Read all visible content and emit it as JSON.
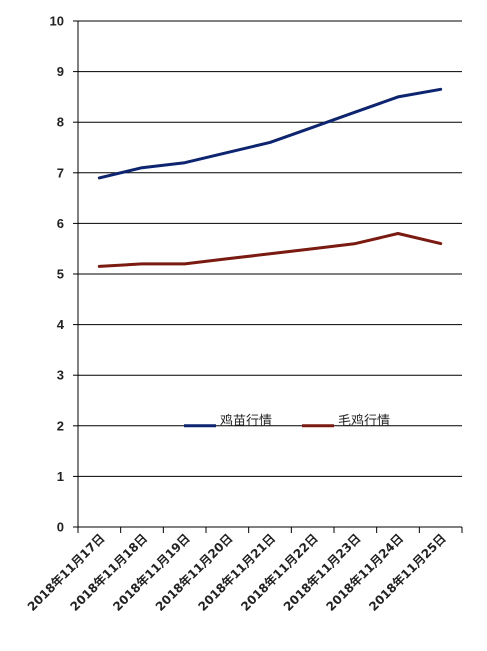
{
  "chart_data": {
    "type": "line",
    "title": "",
    "xlabel": "",
    "ylabel": "",
    "ylim": [
      0,
      10
    ],
    "yticks": [
      0,
      1,
      2,
      3,
      4,
      5,
      6,
      7,
      8,
      9,
      10
    ],
    "grid": true,
    "legend_position": "center-lower",
    "categories": [
      "2018年11月17日",
      "2018年11月18日",
      "2018年11月19日",
      "2018年11月20日",
      "2018年11月21日",
      "2018年11月22日",
      "2018年11月23日",
      "2018年11月24日",
      "2018年11月25日"
    ],
    "series": [
      {
        "name": "鸡苗行情",
        "color": "#0d2470",
        "values": [
          6.9,
          7.1,
          7.2,
          7.4,
          7.6,
          7.9,
          8.2,
          8.5,
          8.65
        ]
      },
      {
        "name": "毛鸡行情",
        "color": "#7a1a10",
        "values": [
          5.15,
          5.2,
          5.2,
          5.3,
          5.4,
          5.5,
          5.6,
          5.8,
          5.6
        ]
      }
    ]
  }
}
